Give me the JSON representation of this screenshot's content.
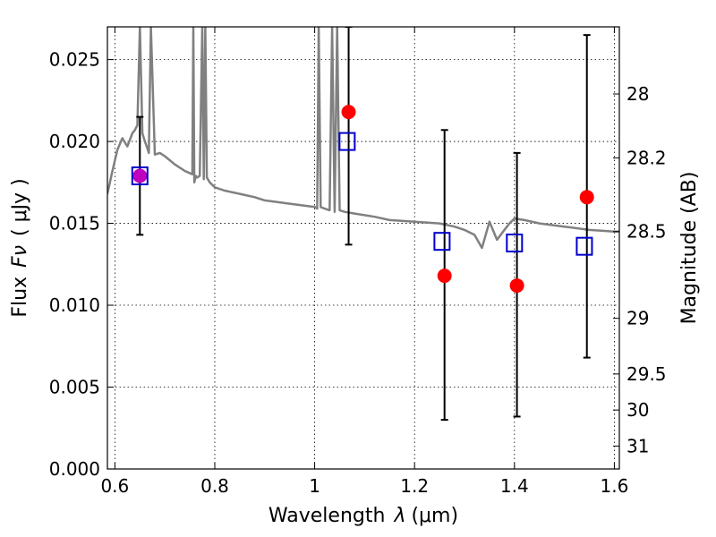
{
  "chart_data": {
    "type": "scatter",
    "title": "",
    "xlabel": "Wavelength",
    "xlabel_symbol": "λ",
    "xlabel_unit": "(μm)",
    "ylabel": "Flux",
    "ylabel_symbol": "Fν",
    "ylabel_unit": "( μJy )",
    "y2label": "Magnitude (AB)",
    "xlim": [
      0.585,
      1.61
    ],
    "ylim": [
      0.0,
      0.027
    ],
    "grid": true,
    "x_ticks": [
      0.6,
      0.8,
      1.0,
      1.2,
      1.4,
      1.6
    ],
    "x_tick_labels": [
      "0.6",
      "0.8",
      "1",
      "1.2",
      "1.4",
      "1.6"
    ],
    "y_ticks": [
      0.0,
      0.005,
      0.01,
      0.015,
      0.02,
      0.025
    ],
    "y_tick_labels": [
      "0.000",
      "0.005",
      "0.010",
      "0.015",
      "0.020",
      "0.025"
    ],
    "y2_ticks": [
      {
        "label": "28",
        "flux": 0.0229
      },
      {
        "label": "28.2",
        "flux": 0.019
      },
      {
        "label": "28.5",
        "flux": 0.0145
      },
      {
        "label": "29",
        "flux": 0.0092
      },
      {
        "label": "29.5",
        "flux": 0.0058
      },
      {
        "label": "30",
        "flux": 0.0036
      },
      {
        "label": "31",
        "flux": 0.0014
      }
    ],
    "series": [
      {
        "kind": "line",
        "color": "#808080",
        "x": [
          0.585,
          0.595,
          0.605,
          0.615,
          0.625,
          0.635,
          0.64,
          0.645,
          0.65,
          0.655,
          0.66,
          0.665,
          0.668,
          0.672,
          0.68,
          0.69,
          0.7,
          0.72,
          0.74,
          0.755,
          0.757,
          0.759,
          0.762,
          0.765,
          0.77,
          0.775,
          0.778,
          0.781,
          0.784,
          0.79,
          0.8,
          0.82,
          0.85,
          0.88,
          0.9,
          0.95,
          1.0,
          1.005,
          1.008,
          1.012,
          1.02,
          1.03,
          1.035,
          1.04,
          1.045,
          1.05,
          1.06,
          1.08,
          1.12,
          1.15,
          1.2,
          1.25,
          1.28,
          1.3,
          1.32,
          1.335,
          1.35,
          1.365,
          1.38,
          1.39,
          1.4,
          1.42,
          1.45,
          1.5,
          1.55,
          1.6,
          1.61
        ],
        "y": [
          0.0168,
          0.0182,
          0.0195,
          0.0202,
          0.0197,
          0.0205,
          0.0207,
          0.021,
          0.027,
          0.0205,
          0.02,
          0.0196,
          0.0193,
          0.027,
          0.0192,
          0.0193,
          0.0191,
          0.0186,
          0.0182,
          0.018,
          0.027,
          0.0175,
          0.0179,
          0.0178,
          0.0179,
          0.027,
          0.0177,
          0.027,
          0.0178,
          0.0175,
          0.0172,
          0.017,
          0.0168,
          0.0166,
          0.0164,
          0.0162,
          0.016,
          0.0159,
          0.027,
          0.016,
          0.0159,
          0.0158,
          0.027,
          0.0157,
          0.027,
          0.0158,
          0.0157,
          0.0156,
          0.0154,
          0.0152,
          0.0151,
          0.015,
          0.0148,
          0.0146,
          0.0143,
          0.0135,
          0.0151,
          0.014,
          0.0146,
          0.015,
          0.0153,
          0.0152,
          0.015,
          0.0148,
          0.0146,
          0.0145,
          0.0145
        ]
      },
      {
        "kind": "errorbar",
        "color": "#000000",
        "x": [
          0.65,
          1.068,
          1.26,
          1.405,
          1.545
        ],
        "y_low": [
          0.0143,
          0.0137,
          0.003,
          0.0032,
          0.0068
        ],
        "y_high": [
          0.0215,
          0.027,
          0.0207,
          0.0193,
          0.0265
        ]
      },
      {
        "kind": "scatter",
        "marker": "circle",
        "color": "#ff0000",
        "x": [
          1.068,
          1.26,
          1.405,
          1.545
        ],
        "y": [
          0.0218,
          0.0118,
          0.0112,
          0.0166
        ]
      },
      {
        "kind": "scatter",
        "marker": "circle",
        "color": "#bf00bf",
        "x": [
          0.65
        ],
        "y": [
          0.0179
        ]
      },
      {
        "kind": "scatter",
        "marker": "square-open",
        "color": "#0000cc",
        "x": [
          0.65,
          1.065,
          1.255,
          1.4,
          1.54
        ],
        "y": [
          0.0179,
          0.02,
          0.0139,
          0.0138,
          0.0136
        ]
      }
    ]
  }
}
